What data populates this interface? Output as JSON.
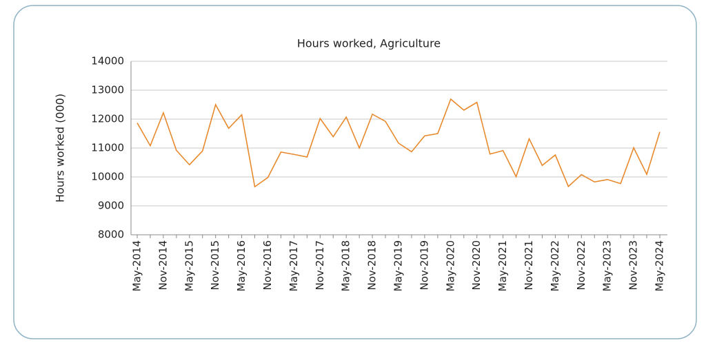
{
  "chart_data": {
    "type": "line",
    "title": "Hours worked, Agriculture",
    "y_label": "Hours worked (000)",
    "categories": [
      "May-2014",
      null,
      "Nov-2014",
      null,
      "May-2015",
      null,
      "Nov-2015",
      null,
      "May-2016",
      null,
      "Nov-2016",
      null,
      "May-2017",
      null,
      "Nov-2017",
      null,
      "May-2018",
      null,
      "Nov-2018",
      null,
      "May-2019",
      null,
      "Nov-2019",
      null,
      "May-2020",
      null,
      "Nov-2020",
      null,
      "May-2021",
      null,
      "Nov-2021",
      null,
      "May-2022",
      null,
      "Nov-2022",
      null,
      "May-2023",
      null,
      "Nov-2023",
      null,
      "May-2024"
    ],
    "series": [
      {
        "name": "Hours worked, Agriculture",
        "color": "#e8892c",
        "values": [
          11870,
          11080,
          12220,
          10920,
          10420,
          10900,
          12500,
          11680,
          12150,
          9660,
          9980,
          10860,
          10780,
          10690,
          12020,
          11390,
          12070,
          11000,
          12170,
          11920,
          11170,
          10870,
          11420,
          11500,
          12690,
          12310,
          12580,
          10790,
          10910,
          10010,
          11320,
          10400,
          10760,
          9670,
          10080,
          9830,
          9910,
          9770,
          11010,
          10090,
          11560
        ]
      }
    ],
    "ylim": [
      8000,
      14000
    ],
    "yticks": [
      8000,
      9000,
      10000,
      11000,
      12000,
      13000,
      14000
    ],
    "grid": true
  }
}
